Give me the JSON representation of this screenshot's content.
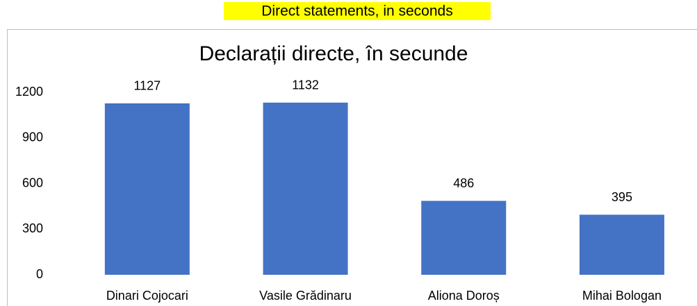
{
  "caption": "Direct statements, in seconds",
  "chart_data": {
    "type": "bar",
    "title": "Declarații directe, în secunde",
    "categories": [
      "Dinari Cojocari",
      "Vasile Grădinaru",
      "Aliona Doroș",
      "Mihai Bologan"
    ],
    "values": [
      1127,
      1132,
      486,
      395
    ],
    "color": "#4472c4",
    "ylim": [
      0,
      1200
    ],
    "yticks": [
      0,
      300,
      600,
      900,
      1200
    ],
    "grid": false
  }
}
